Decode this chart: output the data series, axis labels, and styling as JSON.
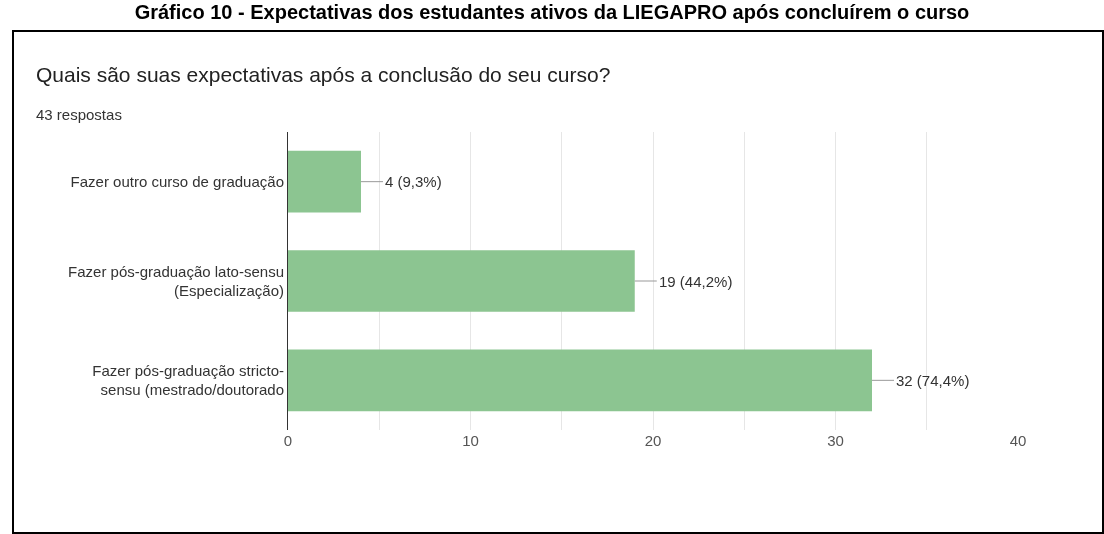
{
  "chart_data": {
    "type": "bar",
    "orientation": "horizontal",
    "title": "Quais são suas expectativas após a conclusão do seu curso?",
    "subtitle": "43 respostas",
    "annotations": [
      "Gráfico 10 - Expectativas dos estudantes ativos da LIEGAPRO após concluírem o curso"
    ],
    "categories": [
      "Fazer outro curso de graduação",
      "Fazer pós-graduação lato-sensu\n(Especialização)",
      "Fazer pós-graduação stricto-\nsensu (mestrado/doutorado"
    ],
    "values": [
      4,
      19,
      32
    ],
    "value_labels": [
      "4 (9,3%)",
      "19 (44,2%)",
      "32 (74,4%)"
    ],
    "color": "#8cc591",
    "xlim": [
      0,
      40
    ],
    "xticks": [
      0,
      {
        "value": 5,
        "label": null
      },
      10,
      {
        "value": 15,
        "label": null
      },
      20,
      {
        "value": 25,
        "label": null
      },
      30,
      {
        "value": 35,
        "label": null
      },
      40
    ],
    "grid": true
  }
}
